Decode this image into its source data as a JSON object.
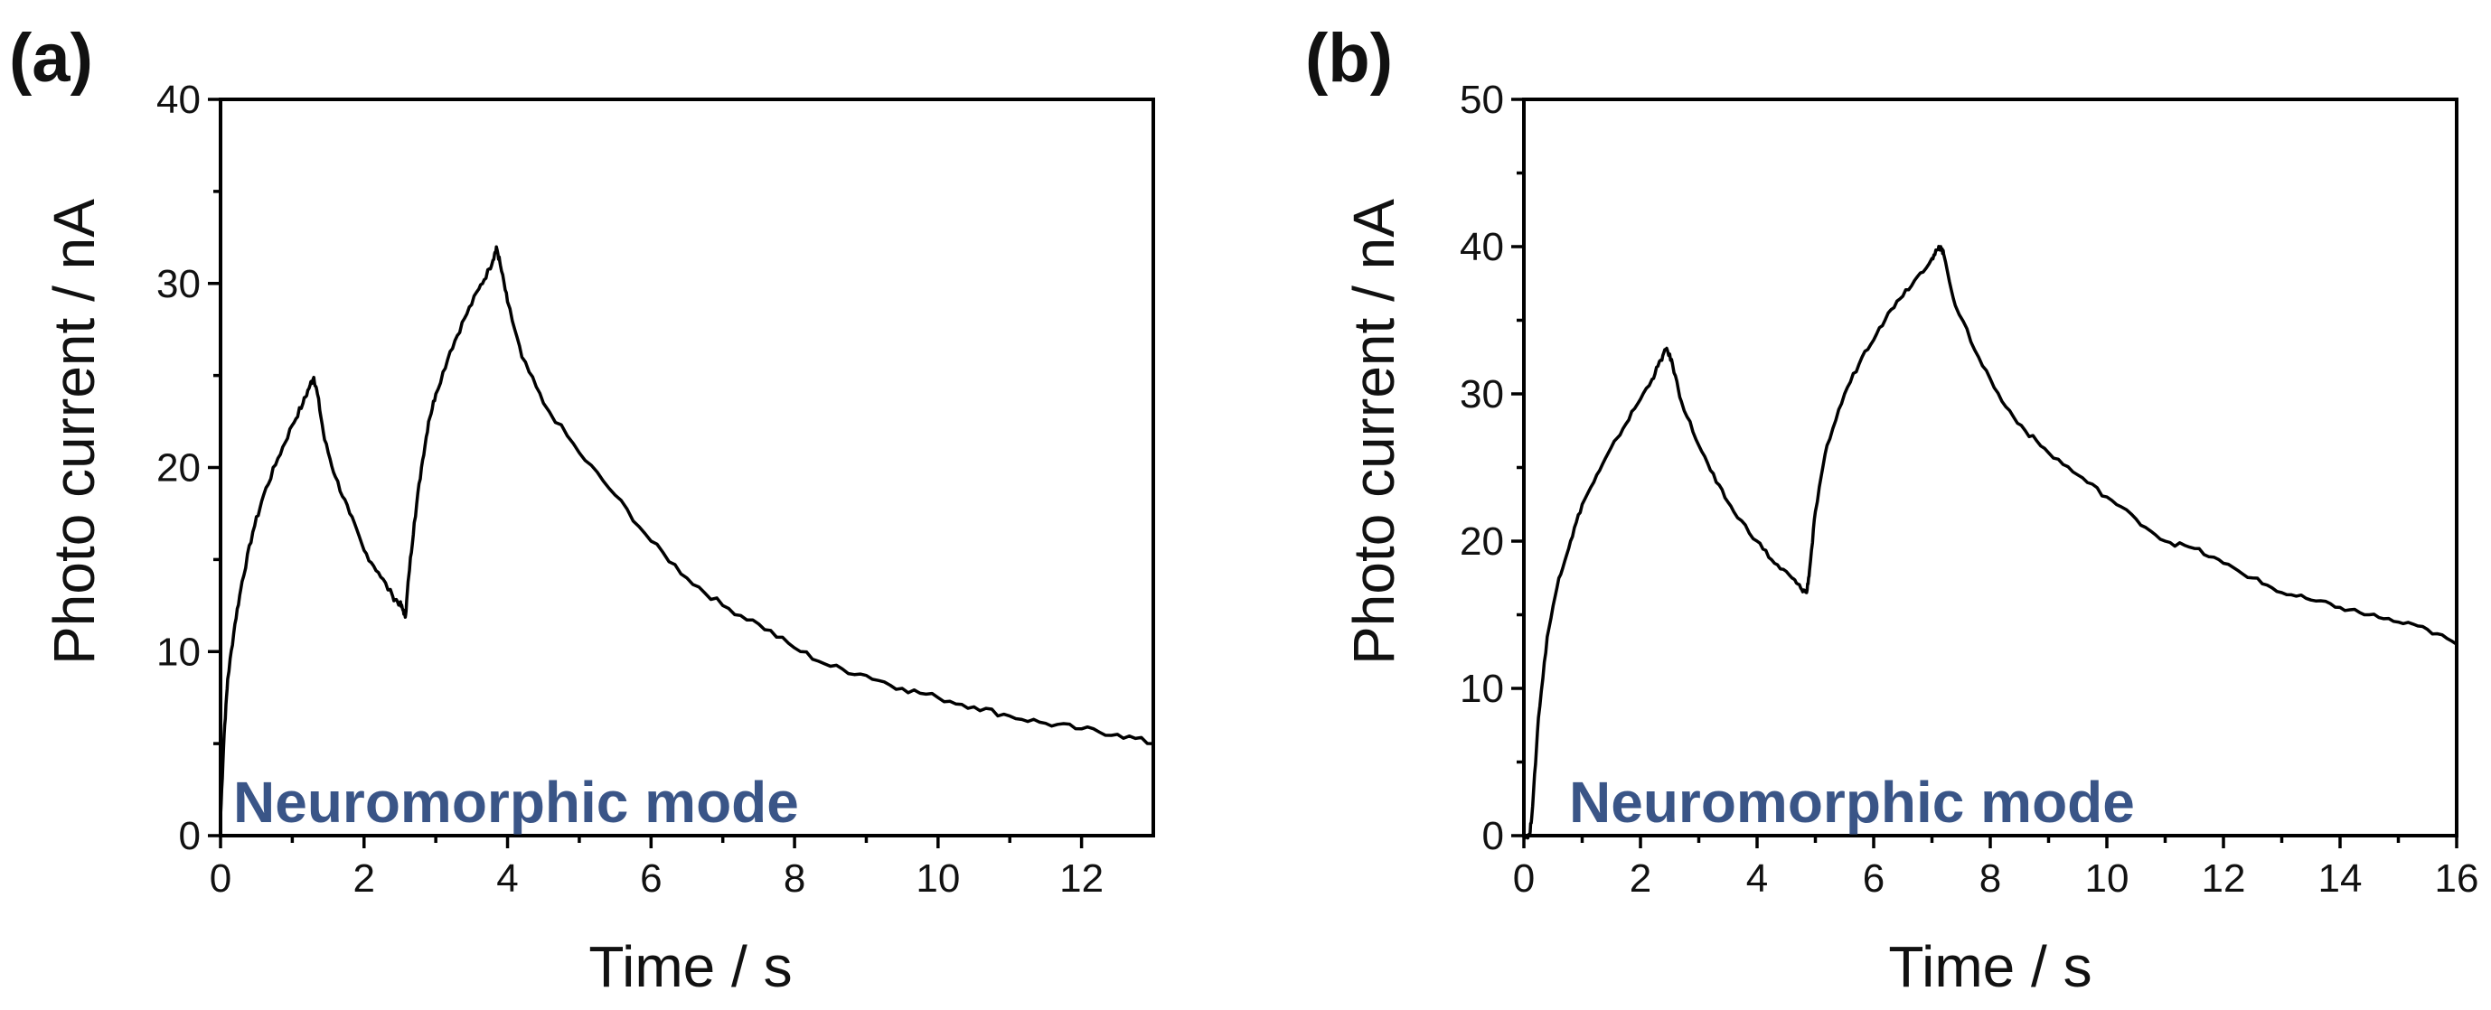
{
  "colors": {
    "line": "#000000",
    "annotation": "#3a5587",
    "axis": "#000000"
  },
  "chart_data": [
    {
      "type": "line",
      "panel_label": "(a)",
      "xlabel": "Time / s",
      "ylabel": "Photo current / nA",
      "annotation": "Neuromorphic mode",
      "xlim": [
        0,
        13
      ],
      "ylim": [
        0,
        40
      ],
      "x_ticks": [
        0,
        2,
        4,
        6,
        8,
        10,
        12
      ],
      "y_ticks": [
        0,
        10,
        20,
        30,
        40
      ],
      "grid": false,
      "series": [
        {
          "x": [
            0,
            0.05,
            0.1,
            0.2,
            0.3,
            0.45,
            0.6,
            0.8,
            1.0,
            1.15,
            1.25,
            1.3,
            1.35,
            1.45,
            1.6,
            1.8,
            2.0,
            2.2,
            2.4,
            2.5,
            2.55,
            2.58,
            2.62,
            2.7,
            2.8,
            2.9,
            3.0,
            3.2,
            3.4,
            3.6,
            3.75,
            3.82,
            3.85,
            3.9,
            4.0,
            4.2,
            4.5,
            5.0,
            5.5,
            6.0,
            6.5,
            7.0,
            7.5,
            8.0,
            8.5,
            9.0,
            9.5,
            10.0,
            10.5,
            11.0,
            11.5,
            12.0,
            12.5,
            13.0
          ],
          "y": [
            1.0,
            5.5,
            8.5,
            11.5,
            13.8,
            16.5,
            18.5,
            20.5,
            22.3,
            23.5,
            24.5,
            24.9,
            24.0,
            21.5,
            19.5,
            17.5,
            15.5,
            14.3,
            13.0,
            12.6,
            12.2,
            12.0,
            14.0,
            17.0,
            20.0,
            22.5,
            24.0,
            26.3,
            28.1,
            29.7,
            30.8,
            31.6,
            31.9,
            31.0,
            29.0,
            26.0,
            23.5,
            20.8,
            18.5,
            16.0,
            14.0,
            12.5,
            11.5,
            10.2,
            9.2,
            8.7,
            8.0,
            7.5,
            7.0,
            6.5,
            6.1,
            5.8,
            5.5,
            5.0
          ]
        }
      ]
    },
    {
      "type": "line",
      "panel_label": "(b)",
      "xlabel": "Time / s",
      "ylabel": "Photo current / nA",
      "annotation": "Neuromorphic mode",
      "xlim": [
        0,
        16
      ],
      "ylim": [
        0,
        50
      ],
      "x_ticks": [
        0,
        2,
        4,
        6,
        8,
        10,
        12,
        14,
        16
      ],
      "y_ticks": [
        0,
        10,
        20,
        30,
        40,
        50
      ],
      "grid": false,
      "series": [
        {
          "x": [
            0.0,
            0.1,
            0.15,
            0.25,
            0.4,
            0.6,
            0.8,
            1.0,
            1.3,
            1.6,
            1.9,
            2.2,
            2.35,
            2.45,
            2.55,
            2.7,
            3.0,
            3.3,
            3.6,
            4.0,
            4.3,
            4.6,
            4.75,
            4.85,
            4.9,
            5.0,
            5.2,
            5.5,
            5.8,
            6.1,
            6.4,
            6.7,
            7.0,
            7.1,
            7.15,
            7.2,
            7.4,
            7.8,
            8.2,
            8.6,
            9.0,
            9.5,
            10.0,
            10.5,
            11.0,
            11.5,
            12.0,
            12.5,
            13.0,
            13.5,
            14.0,
            14.5,
            15.0,
            15.5,
            16.0
          ],
          "y": [
            0,
            0,
            2.0,
            8.0,
            13.5,
            17.5,
            20.0,
            22.5,
            24.8,
            27.0,
            29.0,
            31.0,
            32.3,
            33.1,
            32.0,
            29.5,
            26.5,
            24.0,
            22.0,
            20.0,
            18.5,
            17.5,
            16.8,
            16.5,
            18.0,
            22.0,
            26.5,
            30.0,
            32.5,
            34.5,
            36.3,
            37.7,
            39.2,
            39.8,
            40.0,
            39.5,
            36.0,
            32.5,
            29.5,
            27.5,
            26.0,
            24.5,
            23.0,
            21.5,
            20.0,
            19.5,
            18.5,
            17.5,
            16.5,
            16.0,
            15.5,
            15.0,
            14.5,
            14.0,
            13.0
          ]
        }
      ]
    }
  ]
}
